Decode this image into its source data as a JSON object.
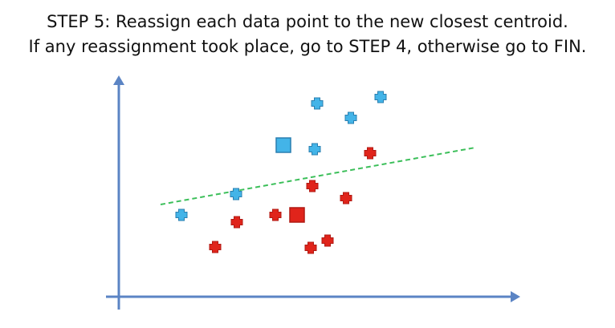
{
  "caption": {
    "step_label": "STEP 5",
    "line1_rest": ": Reassign each data point to the new closest centroid.",
    "line2": "If any reassignment took place, go to STEP 4, otherwise go to FIN."
  },
  "colors": {
    "axis": "#5b84c4",
    "cluster_blue": "#43b4e8",
    "cluster_blue_stroke": "#2a7fb0",
    "cluster_red": "#e0241b",
    "cluster_red_stroke": "#b01a13",
    "divider": "#3cbf5a"
  },
  "icons": {
    "point_marker": "plus-cross-icon",
    "centroid_marker": "square-icon"
  }
}
